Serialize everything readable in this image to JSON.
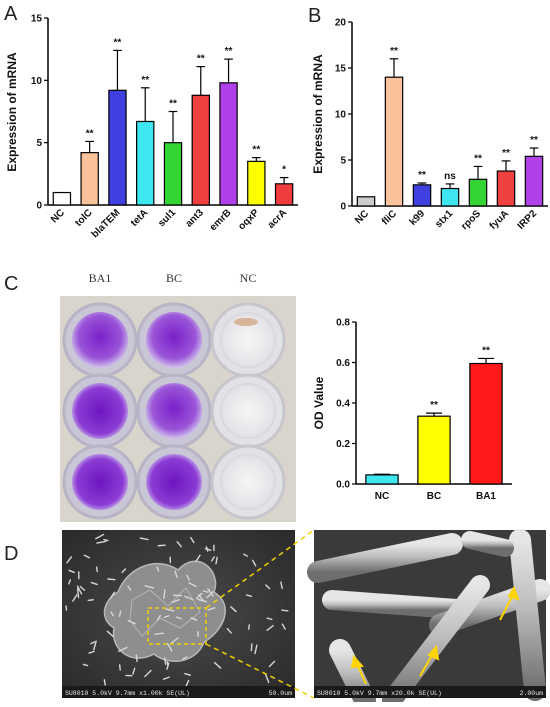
{
  "panels": {
    "a": "A",
    "b": "B",
    "c": "C",
    "d": "D"
  },
  "plate_labels": [
    "BA1",
    "BC",
    "NC"
  ],
  "sem": {
    "left_caption": "SU8010 5.0kV 9.7mm x1.00k SE(UL)",
    "left_scale": "50.0um",
    "right_caption": "SU8010 5.0kV 9.7mm x20.0k SE(UL)",
    "right_scale": "2.00um"
  },
  "colors": {
    "bar_outline": "#000000",
    "highlight_box": "#f0d000"
  },
  "chart_data": [
    {
      "id": "chartA",
      "type": "bar",
      "ylabel": "Expression of mRNA",
      "ylim": [
        0,
        15
      ],
      "yticks": [
        0,
        5,
        10,
        15
      ],
      "categories": [
        "NC",
        "tolC",
        "blaTEM",
        "tetA",
        "sul1",
        "ant3",
        "emrB",
        "oqxP",
        "acrA"
      ],
      "values": [
        1.0,
        4.2,
        9.2,
        6.7,
        5.0,
        8.8,
        9.8,
        3.5,
        1.7
      ],
      "errors": [
        0.0,
        0.9,
        3.2,
        2.7,
        2.5,
        2.3,
        1.9,
        0.3,
        0.5
      ],
      "significance": [
        "",
        "**",
        "**",
        "**",
        "**",
        "**",
        "**",
        "**",
        "*"
      ],
      "colors": [
        "#ffffff",
        "#f9c29a",
        "#4040e0",
        "#3ee6f0",
        "#33d433",
        "#f04040",
        "#b040e8",
        "#ffff00",
        "#f03c3c"
      ]
    },
    {
      "id": "chartB",
      "type": "bar",
      "ylabel": "Expression of mRNA",
      "ylim": [
        0,
        20
      ],
      "yticks": [
        0,
        5,
        10,
        15,
        20
      ],
      "categories": [
        "NC",
        "fliC",
        "k99",
        "stx1",
        "rpoS",
        "fyuA",
        "IRP2"
      ],
      "values": [
        1.0,
        14.0,
        2.3,
        1.9,
        2.9,
        3.8,
        5.4
      ],
      "errors": [
        0.0,
        2.0,
        0.2,
        0.5,
        1.4,
        1.1,
        0.9
      ],
      "significance": [
        "",
        "**",
        "**",
        "ns",
        "**",
        "**",
        "**"
      ],
      "colors": [
        "#cccccc",
        "#f9c29a",
        "#4040e0",
        "#3ee6f0",
        "#33d433",
        "#f04040",
        "#b040e8"
      ]
    },
    {
      "id": "chartC",
      "type": "bar",
      "ylabel": "OD Value",
      "ylim": [
        0,
        0.8
      ],
      "yticks": [
        "0.0",
        "0.2",
        "0.4",
        "0.6",
        "0.8"
      ],
      "categories": [
        "NC",
        "BC",
        "BA1"
      ],
      "values": [
        0.045,
        0.335,
        0.595
      ],
      "errors": [
        0.003,
        0.015,
        0.025
      ],
      "significance": [
        "",
        "**",
        "**"
      ],
      "colors": [
        "#3ee6f0",
        "#ffff00",
        "#ff1a1a"
      ]
    }
  ]
}
